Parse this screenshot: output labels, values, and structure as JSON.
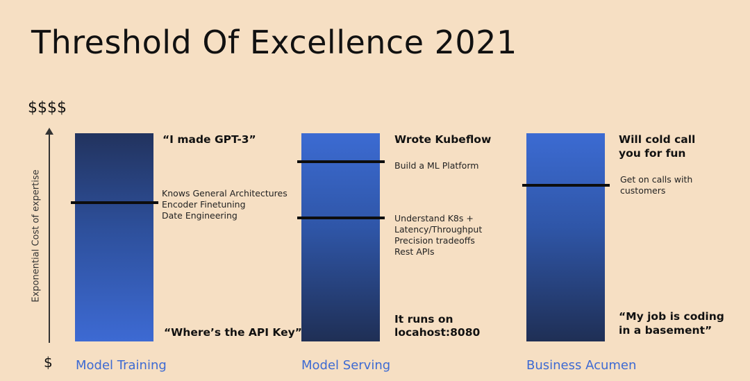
{
  "title": "Threshold Of Excellence 2021",
  "axis": {
    "top": "$$$$",
    "bottom": "$",
    "label": "Exponential Cost of expertise"
  },
  "columns": [
    {
      "category": "Model Training",
      "top_label": "“I made GPT-3”",
      "middle_lines": [
        "Knows General Architectures",
        "Encoder Finetuning",
        "Date Engineering"
      ],
      "bottom_label": "“Where’s the API Key”"
    },
    {
      "category": "Model Serving",
      "top_label": "Wrote Kubeflow",
      "upper_note": "Build a ML Platform",
      "middle_lines": [
        "Understand K8s +",
        "Latency/Throughput",
        "Precision tradeoffs",
        "Rest APIs"
      ],
      "bottom_lines": [
        "It runs on",
        "locahost:8080"
      ]
    },
    {
      "category": "Business Acumen",
      "top_lines": [
        "Will cold call",
        "you for fun"
      ],
      "note_lines": [
        "Get on calls with",
        "customers"
      ],
      "bottom_lines": [
        "“My job is coding",
        "in a basement”"
      ]
    }
  ],
  "colors": {
    "background": "#f6dfc3",
    "bar_light": "#3d6ad3",
    "bar_dark": "#1f2f55",
    "category_text": "#3d6ad3"
  }
}
